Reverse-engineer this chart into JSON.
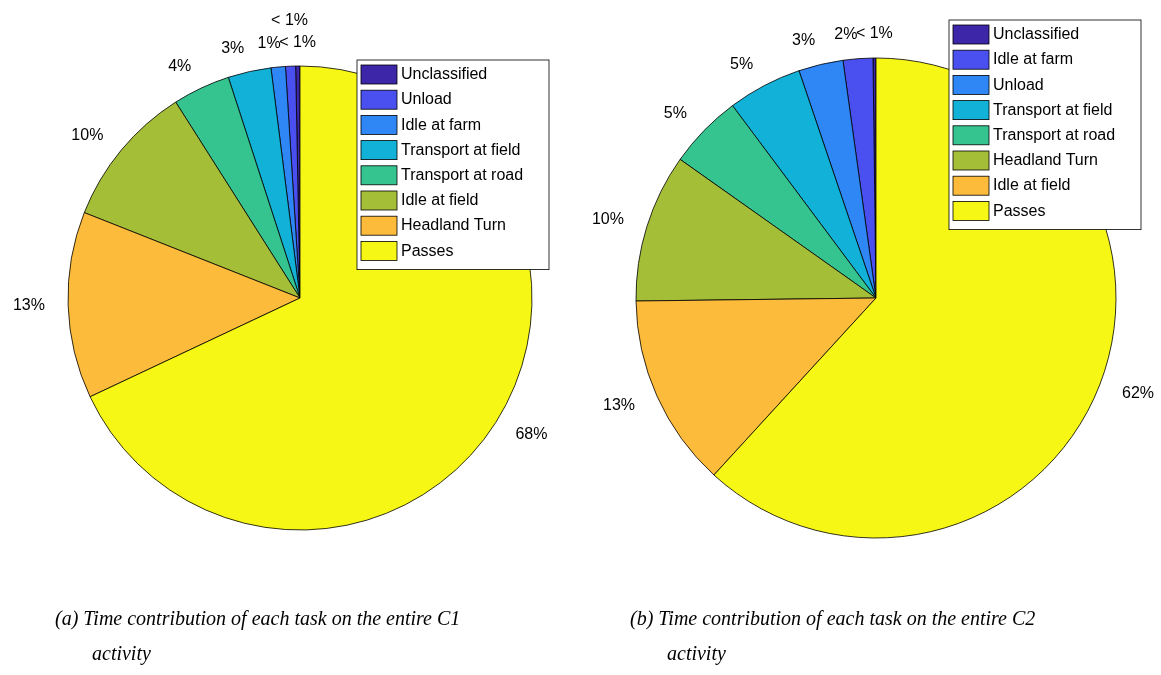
{
  "chart_data": [
    {
      "type": "pie",
      "title": "(a) Time contribution of each task on the entire C1 activity",
      "legend": "top right",
      "categories": [
        "Unclassified",
        "Unload",
        "Idle at farm",
        "Transport at field",
        "Transport at road",
        "Idle at field",
        "Headland Turn",
        "Passes"
      ],
      "values": [
        0.3,
        0.7,
        1,
        3,
        4,
        10,
        13,
        68
      ],
      "value_labels": [
        "< 1%",
        "< 1%",
        "1%",
        "3%",
        "4%",
        "10%",
        "13%",
        "68%"
      ],
      "colors": [
        "#3e26a8",
        "#4a50f0",
        "#2e87f5",
        "#12b2d8",
        "#35c48f",
        "#a5be38",
        "#fcbb3a",
        "#f7f716"
      ]
    },
    {
      "type": "pie",
      "title": "(b) Time contribution of each task on the entire C2 activity",
      "legend": "top right",
      "categories": [
        "Unclassified",
        "Idle at farm",
        "Unload",
        "Transport at field",
        "Transport at road",
        "Headland Turn",
        "Idle at field",
        "Passes"
      ],
      "values": [
        0.2,
        2,
        3,
        5,
        5,
        10,
        13,
        61.8
      ],
      "value_labels": [
        "< 1%",
        "2%",
        "3%",
        "5%",
        "5%",
        "10%",
        "13%",
        "62%"
      ],
      "colors": [
        "#3e26a8",
        "#4a50f0",
        "#2e87f5",
        "#12b2d8",
        "#35c48f",
        "#a5be38",
        "#fcbb3a",
        "#f7f716"
      ]
    }
  ]
}
